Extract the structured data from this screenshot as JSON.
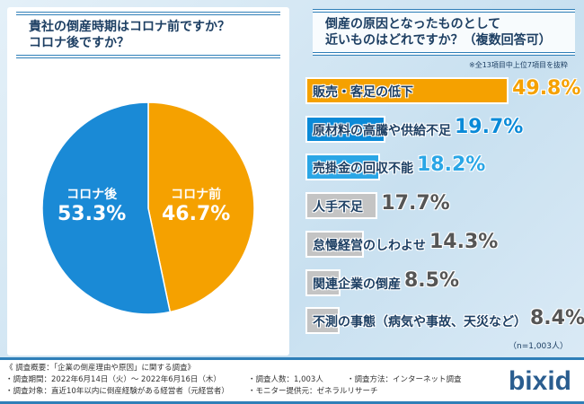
{
  "chart_data": [
    {
      "type": "pie",
      "title": "貴社の倒産時期はコロナ前ですか？\nコロナ後ですか？",
      "slices": [
        {
          "label": "コロナ前",
          "value": 46.7,
          "display": "46.7%",
          "color": "#f5a100"
        },
        {
          "label": "コロナ後",
          "value": 53.3,
          "display": "53.3%",
          "color": "#1a8ad6"
        }
      ]
    },
    {
      "type": "bar",
      "orientation": "horizontal",
      "title": "倒産の原因となったものとして\n近いものはどれですか？（複数回答可）",
      "note": "※全13項目中上位7項目を抜粋",
      "n": "（n=1,003人）",
      "categories": [
        "販売・客足の低下",
        "原材料の高騰や供給不足",
        "売掛金の回収不能",
        "人手不足",
        "怠慢経営のしわよせ",
        "関連企業の倒産",
        "不測の事態（病気や事故、天災など）"
      ],
      "values": [
        49.8,
        19.7,
        18.2,
        17.7,
        14.3,
        8.5,
        8.4
      ],
      "display": [
        "49.8%",
        "19.7%",
        "18.2%",
        "17.7%",
        "14.3%",
        "8.5%",
        "8.4%"
      ],
      "colors": [
        "#f5a100",
        "#0a8ad8",
        "#2aa6e6",
        "#c4c4c4",
        "#c4c4c4",
        "#c4c4c4",
        "#c4c4c4"
      ],
      "pct_colors": [
        "#f5a100",
        "#0a8ad8",
        "#2aa6e6",
        "#555555",
        "#555555",
        "#555555",
        "#555555"
      ]
    }
  ],
  "footer": {
    "lines": [
      "《 調査概要：「企業の倒産理由や原因」に関する調査》",
      "・調査期間：2022年6月14日（火）～ 2022年6月16日（木）",
      "・調査対象：直近10年以内に倒産経験がある経営者（元経営者）"
    ],
    "right": [
      "・調査人数：1,003人",
      "・調査方法：インターネット調査",
      "・モニター提供元：ゼネラルリサーチ"
    ],
    "logo": "bixid"
  }
}
